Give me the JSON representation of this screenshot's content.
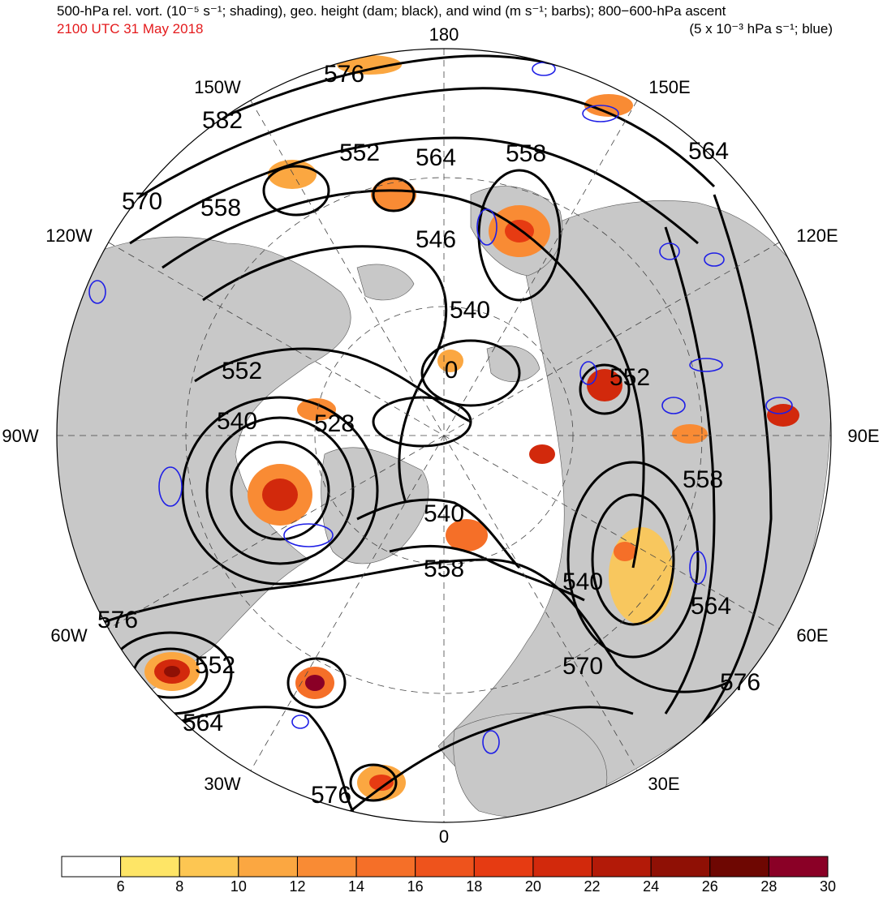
{
  "header": {
    "title_line1": "500-hPa rel. vort. (10⁻⁵ s⁻¹; shading), geo. height (dam; black), and wind (m s⁻¹; barbs); 800−600-hPa ascent",
    "valid_time": "2100 UTC 31 May 2018",
    "title_line2_right": "(5 x 10⁻³ hPa s⁻¹; blue)"
  },
  "longitude_labels": {
    "top": "180",
    "top_left": "150W",
    "top_right": "150E",
    "upper_left": "120W",
    "upper_right": "120E",
    "left": "90W",
    "right": "90E",
    "lower_left": "60W",
    "lower_right": "60E",
    "bottom_left": "30W",
    "bottom_right": "30E",
    "bottom": "0"
  },
  "contour_labels": [
    "576",
    "582",
    "552",
    "564",
    "558",
    "564",
    "570",
    "558",
    "546",
    "540",
    "552",
    "0",
    "552",
    "540",
    "528",
    "558",
    "540",
    "558",
    "540",
    "576",
    "552",
    "564",
    "576",
    "570",
    "564",
    "576"
  ],
  "colorbar": {
    "ticks": [
      "6",
      "8",
      "10",
      "12",
      "14",
      "16",
      "18",
      "20",
      "22",
      "24",
      "26",
      "28",
      "30"
    ],
    "colors": [
      "#ffffff",
      "#fee566",
      "#fdc652",
      "#fba741",
      "#f98b34",
      "#f56f28",
      "#ee531c",
      "#e63b12",
      "#d2290c",
      "#b31a08",
      "#8f1005",
      "#6e0702",
      "#8a0026"
    ]
  },
  "colors": {
    "land": "#c8c8c8",
    "ocean": "#ffffff",
    "height_contour": "#000000",
    "ascent_contour": "#1f1fe6",
    "title_time": "#e41a1c"
  }
}
